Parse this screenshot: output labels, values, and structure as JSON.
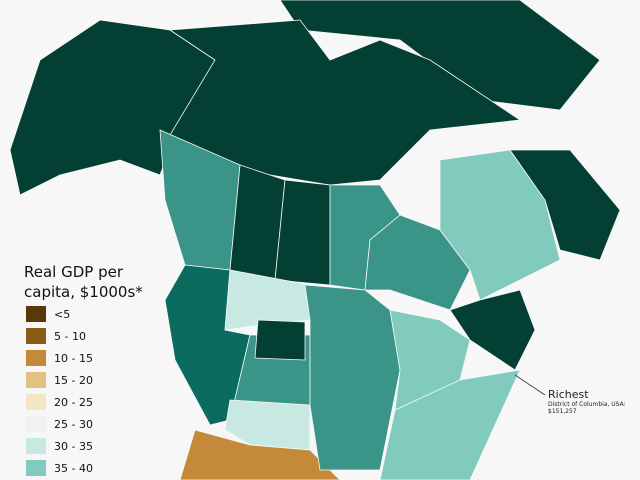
{
  "legend": {
    "title_lines": [
      "Real GDP per",
      "capita, $1000s*"
    ],
    "items": [
      {
        "label": "<5",
        "color": "#5a3908"
      },
      {
        "label": "5 - 10",
        "color": "#8c5a17"
      },
      {
        "label": "10 - 15",
        "color": "#c48a3a"
      },
      {
        "label": "15 - 20",
        "color": "#e2c283"
      },
      {
        "label": "20 - 25",
        "color": "#f3e5c6"
      },
      {
        "label": "25 - 30",
        "color": "#f1f1f1"
      },
      {
        "label": "30 - 35",
        "color": "#c8e9e1"
      },
      {
        "label": "35 - 40",
        "color": "#80cbbe"
      }
    ]
  },
  "annotation": {
    "title": "Richest",
    "lines": [
      "District of Columbia, USA:",
      "$151,257"
    ]
  }
}
